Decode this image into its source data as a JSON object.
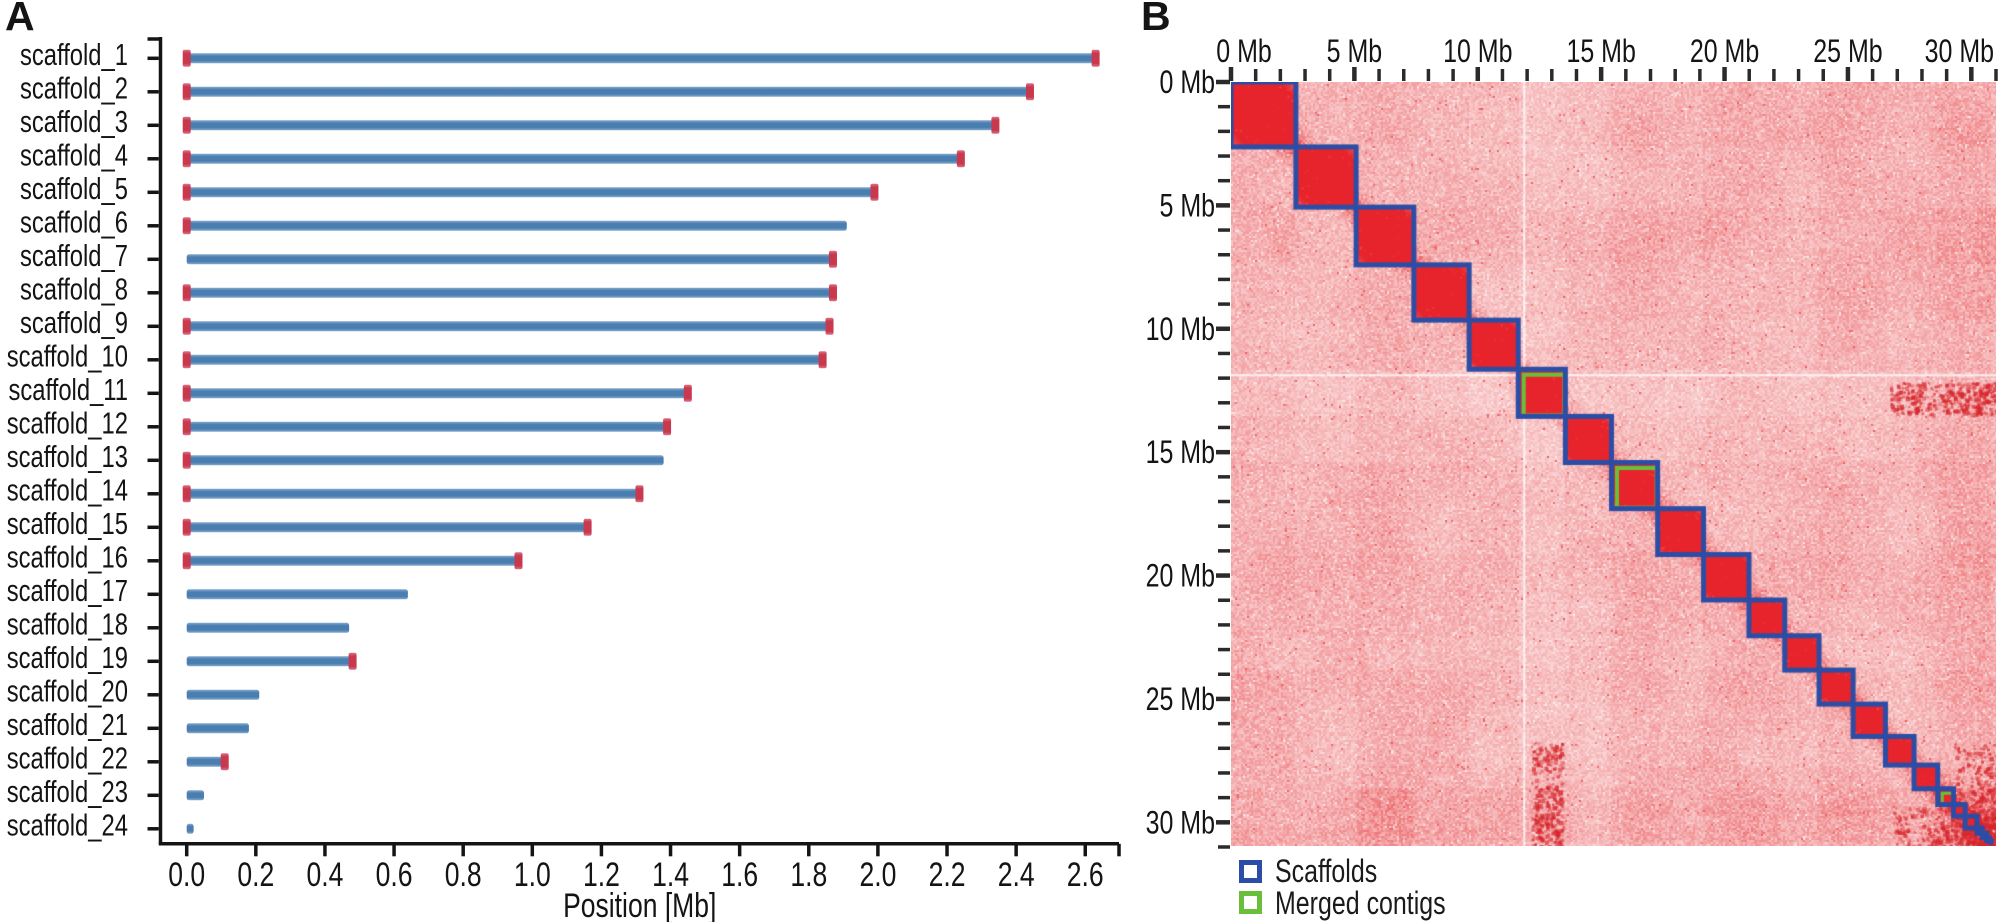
{
  "panels": {
    "a": {
      "label": "A"
    },
    "b": {
      "label": "B"
    }
  },
  "chart_data": [
    {
      "type": "bar",
      "panel": "A",
      "orientation": "horizontal",
      "title": "",
      "xlabel": "Position [Mb]",
      "ylabel": "",
      "xlim": [
        -0.08,
        2.7
      ],
      "x_tick_labels": [
        "0.0",
        "0.2",
        "0.4",
        "0.6",
        "0.8",
        "1.0",
        "1.2",
        "1.4",
        "1.6",
        "1.8",
        "2.0",
        "2.2",
        "2.4",
        "2.6"
      ],
      "x_tick_values": [
        0.0,
        0.2,
        0.4,
        0.6,
        0.8,
        1.0,
        1.2,
        1.4,
        1.6,
        1.8,
        2.0,
        2.2,
        2.4,
        2.6
      ],
      "bar_color": "#4a7eb1",
      "telomere_marker_color": "#c9394e",
      "scaffolds": [
        {
          "name": "scaffold_1",
          "length_mb": 2.63,
          "telomere_left": true,
          "telomere_right": true
        },
        {
          "name": "scaffold_2",
          "length_mb": 2.44,
          "telomere_left": true,
          "telomere_right": true
        },
        {
          "name": "scaffold_3",
          "length_mb": 2.34,
          "telomere_left": true,
          "telomere_right": true
        },
        {
          "name": "scaffold_4",
          "length_mb": 2.24,
          "telomere_left": true,
          "telomere_right": true
        },
        {
          "name": "scaffold_5",
          "length_mb": 1.99,
          "telomere_left": true,
          "telomere_right": true
        },
        {
          "name": "scaffold_6",
          "length_mb": 1.91,
          "telomere_left": true,
          "telomere_right": false
        },
        {
          "name": "scaffold_7",
          "length_mb": 1.87,
          "telomere_left": false,
          "telomere_right": true
        },
        {
          "name": "scaffold_8",
          "length_mb": 1.87,
          "telomere_left": true,
          "telomere_right": true
        },
        {
          "name": "scaffold_9",
          "length_mb": 1.86,
          "telomere_left": true,
          "telomere_right": true
        },
        {
          "name": "scaffold_10",
          "length_mb": 1.84,
          "telomere_left": true,
          "telomere_right": true
        },
        {
          "name": "scaffold_11",
          "length_mb": 1.45,
          "telomere_left": true,
          "telomere_right": true
        },
        {
          "name": "scaffold_12",
          "length_mb": 1.39,
          "telomere_left": true,
          "telomere_right": true
        },
        {
          "name": "scaffold_13",
          "length_mb": 1.38,
          "telomere_left": true,
          "telomere_right": false
        },
        {
          "name": "scaffold_14",
          "length_mb": 1.31,
          "telomere_left": true,
          "telomere_right": true
        },
        {
          "name": "scaffold_15",
          "length_mb": 1.16,
          "telomere_left": true,
          "telomere_right": true
        },
        {
          "name": "scaffold_16",
          "length_mb": 0.96,
          "telomere_left": true,
          "telomere_right": true
        },
        {
          "name": "scaffold_17",
          "length_mb": 0.64,
          "telomere_left": false,
          "telomere_right": false
        },
        {
          "name": "scaffold_18",
          "length_mb": 0.47,
          "telomere_left": false,
          "telomere_right": false
        },
        {
          "name": "scaffold_19",
          "length_mb": 0.48,
          "telomere_left": false,
          "telomere_right": true
        },
        {
          "name": "scaffold_20",
          "length_mb": 0.21,
          "telomere_left": false,
          "telomere_right": false
        },
        {
          "name": "scaffold_21",
          "length_mb": 0.18,
          "telomere_left": false,
          "telomere_right": false
        },
        {
          "name": "scaffold_22",
          "length_mb": 0.11,
          "telomere_left": false,
          "telomere_right": true
        },
        {
          "name": "scaffold_23",
          "length_mb": 0.05,
          "telomere_left": false,
          "telomere_right": false
        },
        {
          "name": "scaffold_24",
          "length_mb": 0.02,
          "telomere_left": false,
          "telomere_right": false
        }
      ]
    },
    {
      "type": "heatmap",
      "panel": "B",
      "title": "",
      "axis_unit": "Mb",
      "axis_max_mb": 31,
      "major_tick_interval_mb": 5,
      "minor_tick_interval_mb": 1,
      "x_tick_labels": [
        "0 Mb",
        "5 Mb",
        "10 Mb",
        "15 Mb",
        "20 Mb",
        "25 Mb",
        "30 Mb"
      ],
      "y_tick_labels": [
        "0 Mb",
        "5 Mb",
        "10 Mb",
        "15 Mb",
        "20 Mb",
        "25 Mb",
        "30 Mb"
      ],
      "scaffolds": [
        {
          "name": "scaffold_1",
          "length_mb": 2.63,
          "merged_contig": false
        },
        {
          "name": "scaffold_2",
          "length_mb": 2.44,
          "merged_contig": false
        },
        {
          "name": "scaffold_3",
          "length_mb": 2.34,
          "merged_contig": false
        },
        {
          "name": "scaffold_4",
          "length_mb": 2.24,
          "merged_contig": false
        },
        {
          "name": "scaffold_5",
          "length_mb": 1.99,
          "merged_contig": false
        },
        {
          "name": "scaffold_6",
          "length_mb": 1.91,
          "merged_contig": true
        },
        {
          "name": "scaffold_7",
          "length_mb": 1.87,
          "merged_contig": false
        },
        {
          "name": "scaffold_8",
          "length_mb": 1.87,
          "merged_contig": true
        },
        {
          "name": "scaffold_9",
          "length_mb": 1.86,
          "merged_contig": false
        },
        {
          "name": "scaffold_10",
          "length_mb": 1.84,
          "merged_contig": false
        },
        {
          "name": "scaffold_11",
          "length_mb": 1.45,
          "merged_contig": false
        },
        {
          "name": "scaffold_12",
          "length_mb": 1.39,
          "merged_contig": false
        },
        {
          "name": "scaffold_13",
          "length_mb": 1.38,
          "merged_contig": false
        },
        {
          "name": "scaffold_14",
          "length_mb": 1.31,
          "merged_contig": false
        },
        {
          "name": "scaffold_15",
          "length_mb": 1.16,
          "merged_contig": false
        },
        {
          "name": "scaffold_16",
          "length_mb": 0.96,
          "merged_contig": false
        },
        {
          "name": "scaffold_17",
          "length_mb": 0.64,
          "merged_contig": true
        },
        {
          "name": "scaffold_18",
          "length_mb": 0.47,
          "merged_contig": false
        },
        {
          "name": "scaffold_19",
          "length_mb": 0.48,
          "merged_contig": false
        },
        {
          "name": "scaffold_20",
          "length_mb": 0.21,
          "merged_contig": false
        },
        {
          "name": "scaffold_21",
          "length_mb": 0.18,
          "merged_contig": false
        },
        {
          "name": "scaffold_22",
          "length_mb": 0.11,
          "merged_contig": false
        },
        {
          "name": "scaffold_23",
          "length_mb": 0.05,
          "merged_contig": false
        },
        {
          "name": "scaffold_24",
          "length_mb": 0.02,
          "merged_contig": false
        }
      ],
      "legend": [
        {
          "label": "Scaffolds",
          "color": "#2c4da5"
        },
        {
          "label": "Merged contigs",
          "color": "#6abf3a"
        }
      ],
      "colors": {
        "contact_low": "#f7c2c2",
        "contact_high": "#e7242b",
        "scaffold_box": "#2c4da5",
        "merged_contig_box": "#6abf3a"
      }
    }
  ]
}
